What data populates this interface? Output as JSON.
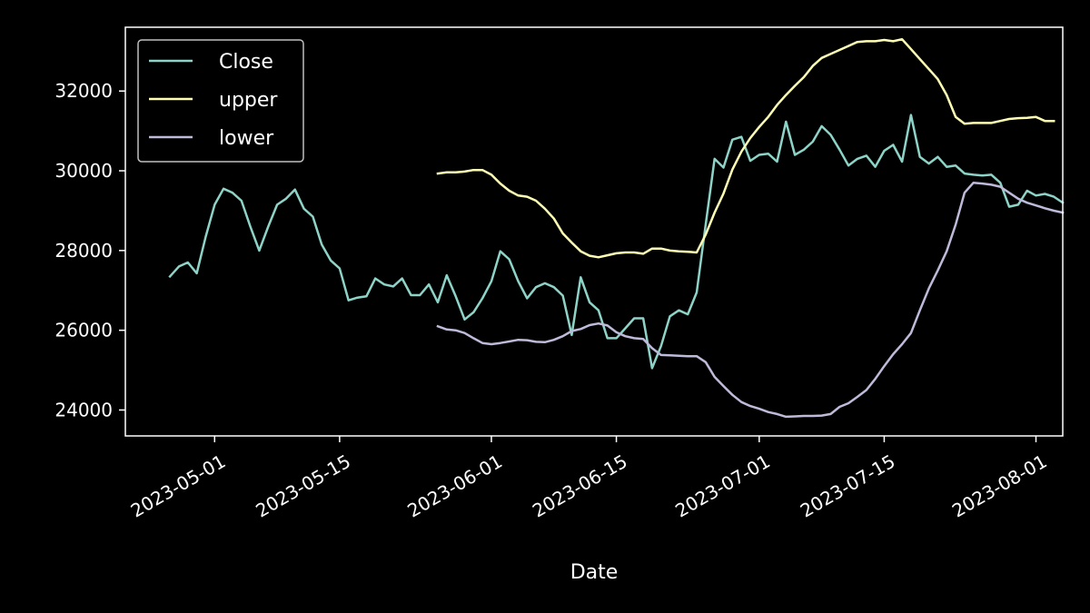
{
  "chart_data": {
    "type": "line",
    "title": "",
    "xlabel": "Date",
    "ylabel": "",
    "x_tick_labels": [
      "2023-05-01",
      "2023-05-15",
      "2023-06-01",
      "2023-06-15",
      "2023-07-01",
      "2023-07-15",
      "2023-08-01"
    ],
    "y_ticks": [
      24000,
      26000,
      28000,
      30000,
      32000
    ],
    "y_tick_labels": [
      "24000",
      "26000",
      "28000",
      "30000",
      "32000"
    ],
    "xlim": [
      "2023-04-21",
      "2023-08-04"
    ],
    "ylim": [
      23350,
      33600
    ],
    "grid": false,
    "legend_position": "top-left",
    "background_color": "#000000",
    "series": [
      {
        "name": "Close",
        "color": "#8dd3c7",
        "points": [
          [
            "2023-04-26",
            27350
          ],
          [
            "2023-04-27",
            27600
          ],
          [
            "2023-04-28",
            27700
          ],
          [
            "2023-04-29",
            27430
          ],
          [
            "2023-04-30",
            28350
          ],
          [
            "2023-05-01",
            29150
          ],
          [
            "2023-05-02",
            29550
          ],
          [
            "2023-05-03",
            29450
          ],
          [
            "2023-05-04",
            29250
          ],
          [
            "2023-05-05",
            28600
          ],
          [
            "2023-05-06",
            28000
          ],
          [
            "2023-05-07",
            28600
          ],
          [
            "2023-05-08",
            29150
          ],
          [
            "2023-05-09",
            29300
          ],
          [
            "2023-05-10",
            29530
          ],
          [
            "2023-05-11",
            29050
          ],
          [
            "2023-05-12",
            28850
          ],
          [
            "2023-05-13",
            28150
          ],
          [
            "2023-05-14",
            27750
          ],
          [
            "2023-05-15",
            27550
          ],
          [
            "2023-05-16",
            26750
          ],
          [
            "2023-05-17",
            26820
          ],
          [
            "2023-05-18",
            26850
          ],
          [
            "2023-05-19",
            27300
          ],
          [
            "2023-05-20",
            27150
          ],
          [
            "2023-05-21",
            27100
          ],
          [
            "2023-05-22",
            27300
          ],
          [
            "2023-05-23",
            26880
          ],
          [
            "2023-05-24",
            26880
          ],
          [
            "2023-05-25",
            27150
          ],
          [
            "2023-05-26",
            26700
          ],
          [
            "2023-05-27",
            27380
          ],
          [
            "2023-05-28",
            26850
          ],
          [
            "2023-05-29",
            26270
          ],
          [
            "2023-05-30",
            26450
          ],
          [
            "2023-05-31",
            26800
          ],
          [
            "2023-06-01",
            27230
          ],
          [
            "2023-06-02",
            27980
          ],
          [
            "2023-06-03",
            27780
          ],
          [
            "2023-06-04",
            27230
          ],
          [
            "2023-06-05",
            26800
          ],
          [
            "2023-06-06",
            27080
          ],
          [
            "2023-06-07",
            27180
          ],
          [
            "2023-06-08",
            27080
          ],
          [
            "2023-06-09",
            26870
          ],
          [
            "2023-06-10",
            25880
          ],
          [
            "2023-06-11",
            27330
          ],
          [
            "2023-06-12",
            26700
          ],
          [
            "2023-06-13",
            26500
          ],
          [
            "2023-06-14",
            25800
          ],
          [
            "2023-06-15",
            25800
          ],
          [
            "2023-06-16",
            26050
          ],
          [
            "2023-06-17",
            26300
          ],
          [
            "2023-06-18",
            26300
          ],
          [
            "2023-06-19",
            25050
          ],
          [
            "2023-06-20",
            25600
          ],
          [
            "2023-06-21",
            26350
          ],
          [
            "2023-06-22",
            26500
          ],
          [
            "2023-06-23",
            26400
          ],
          [
            "2023-06-24",
            26950
          ],
          [
            "2023-06-25",
            28650
          ],
          [
            "2023-06-26",
            30300
          ],
          [
            "2023-06-27",
            30080
          ],
          [
            "2023-06-28",
            30780
          ],
          [
            "2023-06-29",
            30850
          ],
          [
            "2023-06-30",
            30250
          ],
          [
            "2023-07-01",
            30400
          ],
          [
            "2023-07-02",
            30430
          ],
          [
            "2023-07-03",
            30230
          ],
          [
            "2023-07-04",
            31230
          ],
          [
            "2023-07-05",
            30400
          ],
          [
            "2023-07-06",
            30530
          ],
          [
            "2023-07-07",
            30730
          ],
          [
            "2023-07-08",
            31120
          ],
          [
            "2023-07-09",
            30900
          ],
          [
            "2023-07-10",
            30530
          ],
          [
            "2023-07-11",
            30130
          ],
          [
            "2023-07-12",
            30300
          ],
          [
            "2023-07-13",
            30380
          ],
          [
            "2023-07-14",
            30100
          ],
          [
            "2023-07-15",
            30500
          ],
          [
            "2023-07-16",
            30650
          ],
          [
            "2023-07-17",
            30230
          ],
          [
            "2023-07-18",
            31400
          ],
          [
            "2023-07-19",
            30350
          ],
          [
            "2023-07-20",
            30180
          ],
          [
            "2023-07-21",
            30350
          ],
          [
            "2023-07-22",
            30100
          ],
          [
            "2023-07-23",
            30130
          ],
          [
            "2023-07-24",
            29930
          ],
          [
            "2023-07-25",
            29900
          ],
          [
            "2023-07-26",
            29880
          ],
          [
            "2023-07-27",
            29900
          ],
          [
            "2023-07-28",
            29700
          ],
          [
            "2023-07-29",
            29100
          ],
          [
            "2023-07-30",
            29150
          ],
          [
            "2023-07-31",
            29500
          ],
          [
            "2023-08-01",
            29380
          ],
          [
            "2023-08-02",
            29420
          ],
          [
            "2023-08-03",
            29350
          ],
          [
            "2023-08-04",
            29200
          ]
        ]
      },
      {
        "name": "upper",
        "color": "#ffffb3",
        "points": [
          [
            "2023-05-26",
            29930
          ],
          [
            "2023-05-27",
            29960
          ],
          [
            "2023-05-28",
            29960
          ],
          [
            "2023-05-29",
            29980
          ],
          [
            "2023-05-30",
            30020
          ],
          [
            "2023-05-31",
            30020
          ],
          [
            "2023-06-01",
            29900
          ],
          [
            "2023-06-02",
            29680
          ],
          [
            "2023-06-03",
            29500
          ],
          [
            "2023-06-04",
            29380
          ],
          [
            "2023-06-05",
            29350
          ],
          [
            "2023-06-06",
            29250
          ],
          [
            "2023-06-07",
            29050
          ],
          [
            "2023-06-08",
            28800
          ],
          [
            "2023-06-09",
            28430
          ],
          [
            "2023-06-10",
            28200
          ],
          [
            "2023-06-11",
            27980
          ],
          [
            "2023-06-12",
            27870
          ],
          [
            "2023-06-13",
            27830
          ],
          [
            "2023-06-14",
            27880
          ],
          [
            "2023-06-15",
            27930
          ],
          [
            "2023-06-16",
            27950
          ],
          [
            "2023-06-17",
            27950
          ],
          [
            "2023-06-18",
            27920
          ],
          [
            "2023-06-19",
            28050
          ],
          [
            "2023-06-20",
            28050
          ],
          [
            "2023-06-21",
            28000
          ],
          [
            "2023-06-22",
            27980
          ],
          [
            "2023-06-23",
            27970
          ],
          [
            "2023-06-24",
            27950
          ],
          [
            "2023-06-25",
            28400
          ],
          [
            "2023-06-26",
            28950
          ],
          [
            "2023-06-27",
            29430
          ],
          [
            "2023-06-28",
            30030
          ],
          [
            "2023-06-29",
            30480
          ],
          [
            "2023-06-30",
            30820
          ],
          [
            "2023-07-01",
            31100
          ],
          [
            "2023-07-02",
            31350
          ],
          [
            "2023-07-03",
            31650
          ],
          [
            "2023-07-04",
            31900
          ],
          [
            "2023-07-05",
            32130
          ],
          [
            "2023-07-06",
            32350
          ],
          [
            "2023-07-07",
            32630
          ],
          [
            "2023-07-08",
            32830
          ],
          [
            "2023-07-09",
            32930
          ],
          [
            "2023-07-10",
            33030
          ],
          [
            "2023-07-11",
            33130
          ],
          [
            "2023-07-12",
            33230
          ],
          [
            "2023-07-13",
            33250
          ],
          [
            "2023-07-14",
            33250
          ],
          [
            "2023-07-15",
            33280
          ],
          [
            "2023-07-16",
            33250
          ],
          [
            "2023-07-17",
            33300
          ],
          [
            "2023-07-18",
            33050
          ],
          [
            "2023-07-19",
            32800
          ],
          [
            "2023-07-20",
            32550
          ],
          [
            "2023-07-21",
            32300
          ],
          [
            "2023-07-22",
            31900
          ],
          [
            "2023-07-23",
            31350
          ],
          [
            "2023-07-24",
            31180
          ],
          [
            "2023-07-25",
            31200
          ],
          [
            "2023-07-26",
            31200
          ],
          [
            "2023-07-27",
            31200
          ],
          [
            "2023-07-28",
            31250
          ],
          [
            "2023-07-29",
            31300
          ],
          [
            "2023-07-30",
            31320
          ],
          [
            "2023-07-31",
            31330
          ],
          [
            "2023-08-01",
            31350
          ],
          [
            "2023-08-02",
            31250
          ],
          [
            "2023-08-03",
            31250
          ]
        ]
      },
      {
        "name": "lower",
        "color": "#bebada",
        "points": [
          [
            "2023-05-26",
            26100
          ],
          [
            "2023-05-27",
            26020
          ],
          [
            "2023-05-28",
            26000
          ],
          [
            "2023-05-29",
            25930
          ],
          [
            "2023-05-30",
            25800
          ],
          [
            "2023-05-31",
            25680
          ],
          [
            "2023-06-01",
            25650
          ],
          [
            "2023-06-02",
            25680
          ],
          [
            "2023-06-03",
            25720
          ],
          [
            "2023-06-04",
            25760
          ],
          [
            "2023-06-05",
            25750
          ],
          [
            "2023-06-06",
            25710
          ],
          [
            "2023-06-07",
            25700
          ],
          [
            "2023-06-08",
            25760
          ],
          [
            "2023-06-09",
            25850
          ],
          [
            "2023-06-10",
            25980
          ],
          [
            "2023-06-11",
            26030
          ],
          [
            "2023-06-12",
            26130
          ],
          [
            "2023-06-13",
            26170
          ],
          [
            "2023-06-14",
            26120
          ],
          [
            "2023-06-15",
            25950
          ],
          [
            "2023-06-16",
            25850
          ],
          [
            "2023-06-17",
            25800
          ],
          [
            "2023-06-18",
            25780
          ],
          [
            "2023-06-19",
            25550
          ],
          [
            "2023-06-20",
            25380
          ],
          [
            "2023-06-21",
            25370
          ],
          [
            "2023-06-22",
            25360
          ],
          [
            "2023-06-23",
            25350
          ],
          [
            "2023-06-24",
            25350
          ],
          [
            "2023-06-25",
            25200
          ],
          [
            "2023-06-26",
            24830
          ],
          [
            "2023-06-27",
            24600
          ],
          [
            "2023-06-28",
            24380
          ],
          [
            "2023-06-29",
            24200
          ],
          [
            "2023-06-30",
            24100
          ],
          [
            "2023-07-01",
            24030
          ],
          [
            "2023-07-02",
            23950
          ],
          [
            "2023-07-03",
            23900
          ],
          [
            "2023-07-04",
            23830
          ],
          [
            "2023-07-05",
            23840
          ],
          [
            "2023-07-06",
            23850
          ],
          [
            "2023-07-07",
            23850
          ],
          [
            "2023-07-08",
            23860
          ],
          [
            "2023-07-09",
            23900
          ],
          [
            "2023-07-10",
            24080
          ],
          [
            "2023-07-11",
            24170
          ],
          [
            "2023-07-12",
            24330
          ],
          [
            "2023-07-13",
            24500
          ],
          [
            "2023-07-14",
            24780
          ],
          [
            "2023-07-15",
            25100
          ],
          [
            "2023-07-16",
            25400
          ],
          [
            "2023-07-17",
            25650
          ],
          [
            "2023-07-18",
            25930
          ],
          [
            "2023-07-19",
            26500
          ],
          [
            "2023-07-20",
            27050
          ],
          [
            "2023-07-21",
            27500
          ],
          [
            "2023-07-22",
            27980
          ],
          [
            "2023-07-23",
            28650
          ],
          [
            "2023-07-24",
            29450
          ],
          [
            "2023-07-25",
            29700
          ],
          [
            "2023-07-26",
            29680
          ],
          [
            "2023-07-27",
            29650
          ],
          [
            "2023-07-28",
            29600
          ],
          [
            "2023-07-29",
            29450
          ],
          [
            "2023-07-30",
            29300
          ],
          [
            "2023-07-31",
            29200
          ],
          [
            "2023-08-01",
            29130
          ],
          [
            "2023-08-02",
            29060
          ],
          [
            "2023-08-03",
            29000
          ],
          [
            "2023-08-04",
            28950
          ]
        ]
      }
    ]
  }
}
